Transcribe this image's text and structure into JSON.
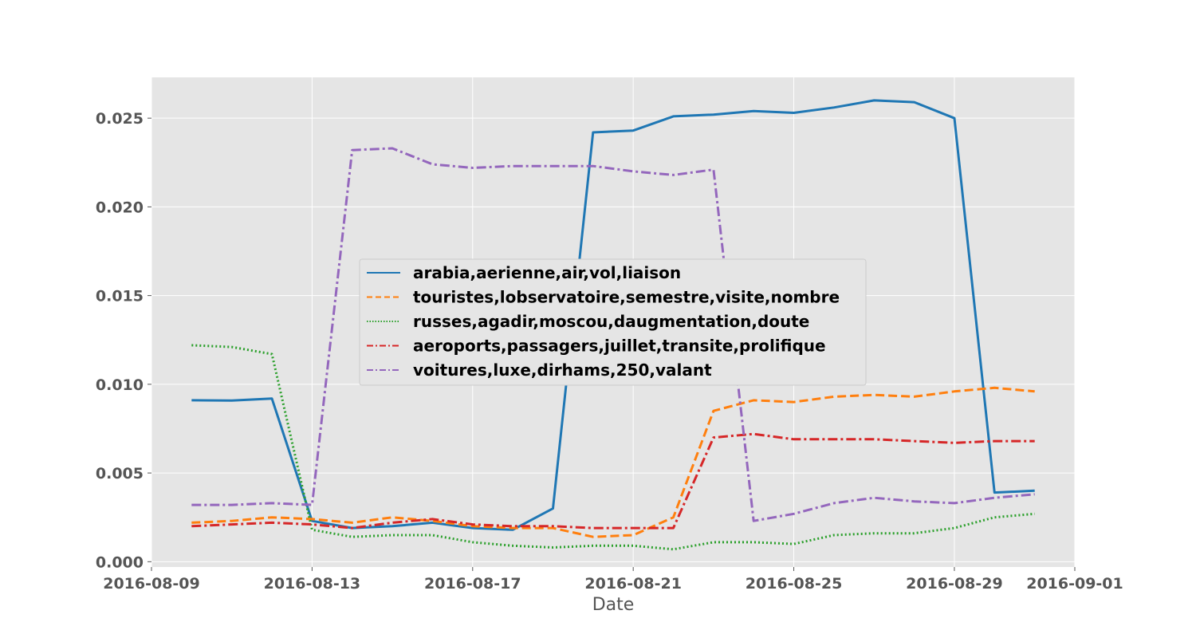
{
  "chart_data": {
    "type": "line",
    "title": "",
    "xlabel": "Date",
    "ylabel": "",
    "x": [
      "2016-08-10",
      "2016-08-11",
      "2016-08-12",
      "2016-08-13",
      "2016-08-14",
      "2016-08-15",
      "2016-08-16",
      "2016-08-17",
      "2016-08-18",
      "2016-08-19",
      "2016-08-20",
      "2016-08-21",
      "2016-08-22",
      "2016-08-23",
      "2016-08-24",
      "2016-08-25",
      "2016-08-26",
      "2016-08-27",
      "2016-08-28",
      "2016-08-29",
      "2016-08-30",
      "2016-08-31"
    ],
    "x_ticks": [
      "2016-08-09",
      "2016-08-13",
      "2016-08-17",
      "2016-08-21",
      "2016-08-25",
      "2016-08-29",
      "2016-09-01"
    ],
    "xlim": [
      "2016-08-09",
      "2016-09-01"
    ],
    "ylim": [
      -0.0003,
      0.0273
    ],
    "y_ticks": [
      "0.000",
      "0.005",
      "0.010",
      "0.015",
      "0.020",
      "0.025"
    ],
    "grid": true,
    "legend_position": "center",
    "series": [
      {
        "name": "arabia,aerienne,air,vol,liaison",
        "color": "#1f77b4",
        "style": "solid",
        "values": [
          0.0091,
          0.00908,
          0.0092,
          0.0023,
          0.0019,
          0.002,
          0.0022,
          0.0019,
          0.0018,
          0.003,
          0.0242,
          0.0243,
          0.0251,
          0.0252,
          0.0254,
          0.0253,
          0.0256,
          0.026,
          0.0259,
          0.025,
          0.0039,
          0.004
        ]
      },
      {
        "name": "touristes,lobservatoire,semestre,visite,nombre",
        "color": "#ff7f0e",
        "style": "dashed",
        "values": [
          0.0022,
          0.0023,
          0.0025,
          0.0024,
          0.0022,
          0.0025,
          0.0023,
          0.002,
          0.0019,
          0.0019,
          0.0014,
          0.0015,
          0.0025,
          0.0085,
          0.0091,
          0.009,
          0.0093,
          0.0094,
          0.0093,
          0.0096,
          0.0098,
          0.0096
        ]
      },
      {
        "name": "russes,agadir,moscou,daugmentation,doute",
        "color": "#2ca02c",
        "style": "dotted",
        "values": [
          0.0122,
          0.0121,
          0.0117,
          0.0018,
          0.0014,
          0.0015,
          0.0015,
          0.0011,
          0.0009,
          0.0008,
          0.0009,
          0.0009,
          0.0007,
          0.0011,
          0.0011,
          0.001,
          0.0015,
          0.0016,
          0.0016,
          0.0019,
          0.0025,
          0.0027
        ]
      },
      {
        "name": "aeroports,passagers,juillet,transite,prolifique",
        "color": "#d62728",
        "style": "dashdot",
        "values": [
          0.002,
          0.0021,
          0.0022,
          0.0021,
          0.0019,
          0.0022,
          0.0024,
          0.0021,
          0.002,
          0.002,
          0.0019,
          0.0019,
          0.0019,
          0.007,
          0.0072,
          0.0069,
          0.0069,
          0.0069,
          0.0068,
          0.0067,
          0.0068,
          0.0068
        ]
      },
      {
        "name": "voitures,luxe,dirhams,250,valant",
        "color": "#9467bd",
        "style": "dashdot",
        "values": [
          0.0032,
          0.0032,
          0.0033,
          0.0032,
          0.0232,
          0.0233,
          0.0224,
          0.0222,
          0.0223,
          0.0223,
          0.0223,
          0.022,
          0.0218,
          0.0221,
          0.0023,
          0.0027,
          0.0033,
          0.0036,
          0.0034,
          0.0033,
          0.0036,
          0.0038
        ]
      }
    ]
  }
}
